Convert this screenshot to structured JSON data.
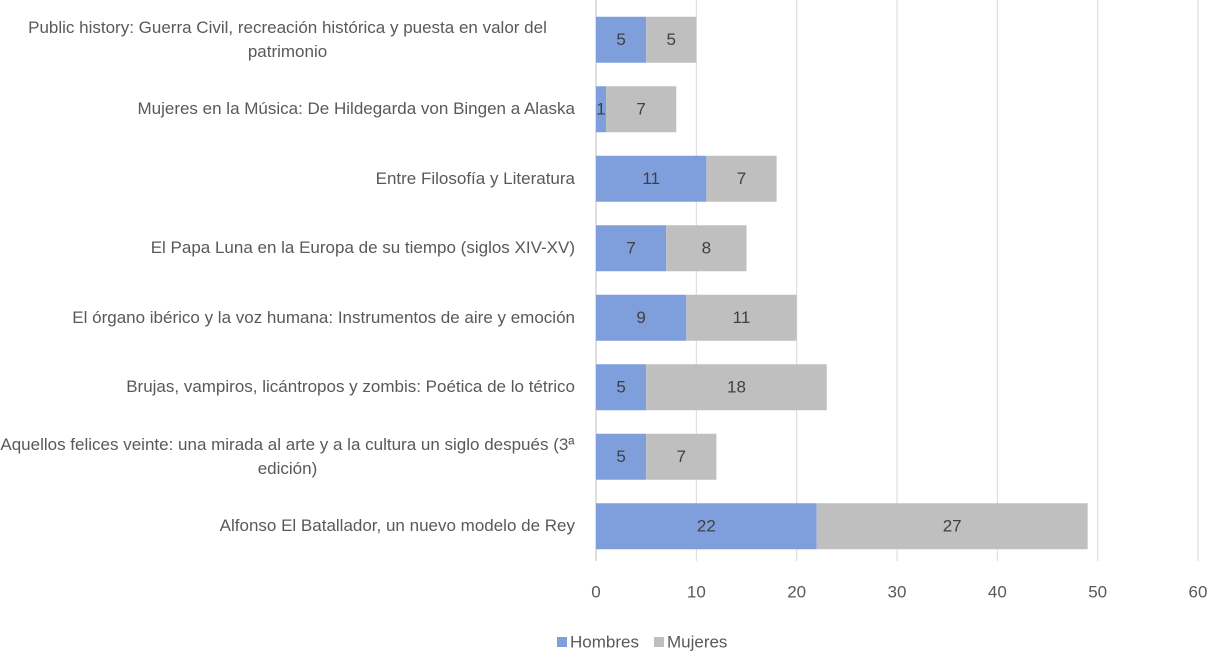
{
  "chart_data": {
    "type": "stacked-barh",
    "categories": [
      "Public history: Guerra Civil, recreación histórica y puesta en valor del patrimonio",
      "Mujeres en la Música: De Hildegarda von Bingen a Alaska",
      "Entre Filosofía y Literatura",
      "El Papa Luna en la Europa de su tiempo (siglos XIV-XV)",
      "El órgano ibérico y la voz humana: Instrumentos de aire y emoción",
      "Brujas, vampiros, licántropos y zombis: Poética de lo tétrico",
      "Aquellos felices veinte: una mirada al arte y a la cultura un siglo después (3ª edición)",
      "Alfonso El Batallador, un nuevo modelo de Rey"
    ],
    "series": [
      {
        "name": "Hombres",
        "color": "#7f9fdc",
        "values": [
          5,
          1,
          11,
          7,
          9,
          5,
          5,
          22
        ]
      },
      {
        "name": "Mujeres",
        "color": "#bfbfbf",
        "values": [
          5,
          7,
          7,
          8,
          11,
          18,
          7,
          27
        ]
      }
    ],
    "xlim": [
      0,
      60
    ],
    "xticks": [
      0,
      10,
      20,
      30,
      40,
      50,
      60
    ],
    "grid": true,
    "legend": "bottom"
  }
}
